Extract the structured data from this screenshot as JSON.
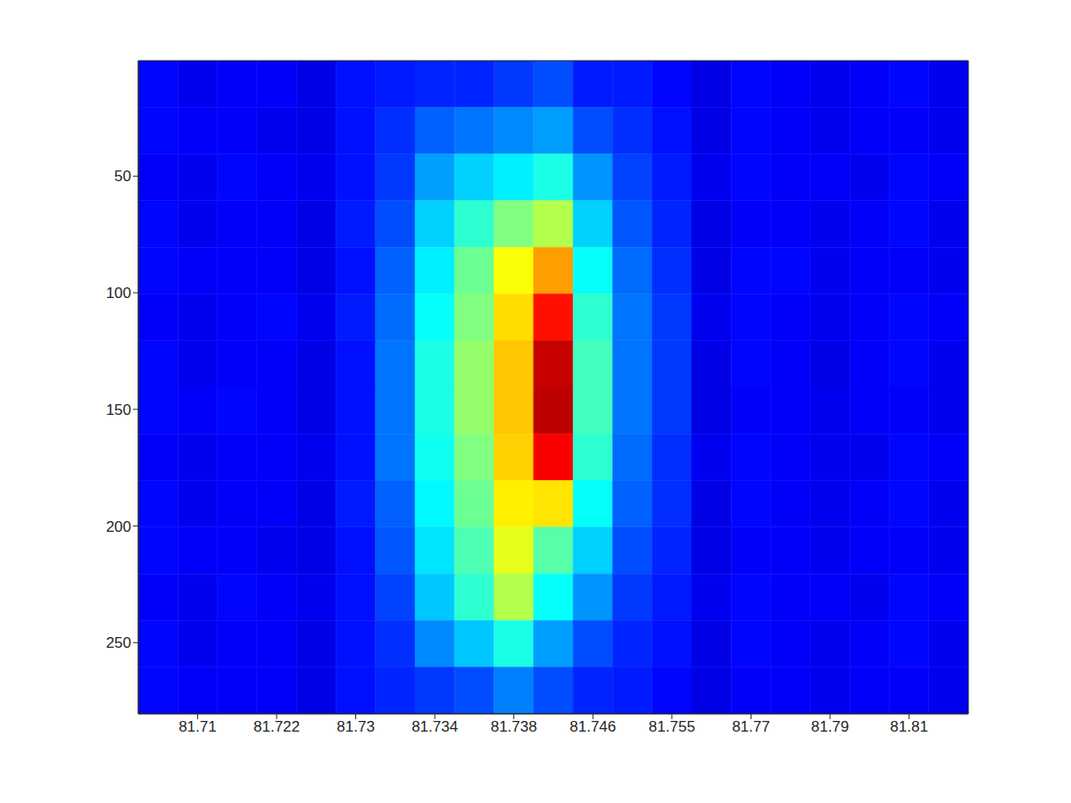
{
  "chart_data": {
    "type": "heatmap",
    "categories": [
      null,
      "81.71",
      null,
      "81.722",
      null,
      "81.73",
      null,
      "81.734",
      null,
      "81.738",
      null,
      "81.746",
      null,
      "81.755",
      null,
      "81.77",
      null,
      "81.79",
      null,
      "81.81",
      null
    ],
    "ylim": [
      0.5,
      280.5
    ],
    "yticks": [
      50,
      100,
      150,
      200,
      250
    ],
    "y_bins": [
      0.5,
      20.5,
      40.5,
      60.5,
      80.5,
      100.5,
      120.5,
      140.5,
      160.5,
      180.5,
      200.5,
      220.5,
      240.5,
      260.5,
      280.5
    ],
    "color_range": [
      0,
      1
    ],
    "cells": [
      [
        0.13,
        0.11,
        0.12,
        0.12,
        0.1,
        0.14,
        0.15,
        0.16,
        0.16,
        0.18,
        0.2,
        0.15,
        0.15,
        0.13,
        0.1,
        0.13,
        0.12,
        0.11,
        0.12,
        0.13,
        0.11
      ],
      [
        0.13,
        0.12,
        0.12,
        0.11,
        0.1,
        0.14,
        0.17,
        0.22,
        0.24,
        0.26,
        0.28,
        0.2,
        0.17,
        0.14,
        0.1,
        0.13,
        0.12,
        0.11,
        0.12,
        0.12,
        0.11
      ],
      [
        0.12,
        0.11,
        0.13,
        0.12,
        0.11,
        0.14,
        0.18,
        0.28,
        0.33,
        0.36,
        0.4,
        0.27,
        0.19,
        0.15,
        0.11,
        0.13,
        0.12,
        0.12,
        0.11,
        0.13,
        0.12
      ],
      [
        0.13,
        0.11,
        0.12,
        0.12,
        0.1,
        0.15,
        0.2,
        0.33,
        0.42,
        0.5,
        0.55,
        0.33,
        0.21,
        0.16,
        0.1,
        0.12,
        0.12,
        0.11,
        0.12,
        0.13,
        0.11
      ],
      [
        0.13,
        0.12,
        0.12,
        0.12,
        0.1,
        0.14,
        0.22,
        0.36,
        0.48,
        0.62,
        0.72,
        0.38,
        0.23,
        0.17,
        0.1,
        0.13,
        0.13,
        0.11,
        0.12,
        0.12,
        0.11
      ],
      [
        0.12,
        0.11,
        0.12,
        0.13,
        0.11,
        0.15,
        0.23,
        0.38,
        0.5,
        0.66,
        0.86,
        0.42,
        0.24,
        0.18,
        0.11,
        0.13,
        0.12,
        0.11,
        0.12,
        0.13,
        0.12
      ],
      [
        0.13,
        0.11,
        0.12,
        0.12,
        0.1,
        0.14,
        0.24,
        0.4,
        0.52,
        0.68,
        0.93,
        0.44,
        0.24,
        0.18,
        0.1,
        0.13,
        0.12,
        0.1,
        0.12,
        0.13,
        0.11
      ],
      [
        0.13,
        0.12,
        0.13,
        0.12,
        0.1,
        0.14,
        0.24,
        0.4,
        0.52,
        0.68,
        0.94,
        0.44,
        0.24,
        0.18,
        0.1,
        0.12,
        0.12,
        0.11,
        0.12,
        0.12,
        0.11
      ],
      [
        0.12,
        0.11,
        0.12,
        0.12,
        0.11,
        0.14,
        0.24,
        0.39,
        0.5,
        0.67,
        0.88,
        0.42,
        0.23,
        0.17,
        0.11,
        0.13,
        0.12,
        0.11,
        0.11,
        0.13,
        0.12
      ],
      [
        0.13,
        0.11,
        0.12,
        0.12,
        0.1,
        0.15,
        0.22,
        0.37,
        0.48,
        0.64,
        0.65,
        0.38,
        0.22,
        0.17,
        0.1,
        0.13,
        0.12,
        0.11,
        0.12,
        0.13,
        0.11
      ],
      [
        0.13,
        0.12,
        0.12,
        0.11,
        0.1,
        0.14,
        0.21,
        0.35,
        0.45,
        0.6,
        0.46,
        0.33,
        0.2,
        0.16,
        0.1,
        0.12,
        0.12,
        0.11,
        0.12,
        0.12,
        0.11
      ],
      [
        0.12,
        0.11,
        0.13,
        0.12,
        0.11,
        0.14,
        0.19,
        0.32,
        0.42,
        0.55,
        0.38,
        0.27,
        0.18,
        0.15,
        0.11,
        0.13,
        0.12,
        0.12,
        0.11,
        0.13,
        0.12
      ],
      [
        0.13,
        0.11,
        0.12,
        0.12,
        0.1,
        0.14,
        0.17,
        0.26,
        0.32,
        0.4,
        0.28,
        0.2,
        0.16,
        0.14,
        0.1,
        0.13,
        0.12,
        0.11,
        0.12,
        0.13,
        0.11
      ],
      [
        0.13,
        0.12,
        0.12,
        0.12,
        0.1,
        0.14,
        0.16,
        0.18,
        0.2,
        0.25,
        0.2,
        0.16,
        0.15,
        0.13,
        0.1,
        0.12,
        0.12,
        0.11,
        0.12,
        0.12,
        0.11
      ]
    ]
  }
}
